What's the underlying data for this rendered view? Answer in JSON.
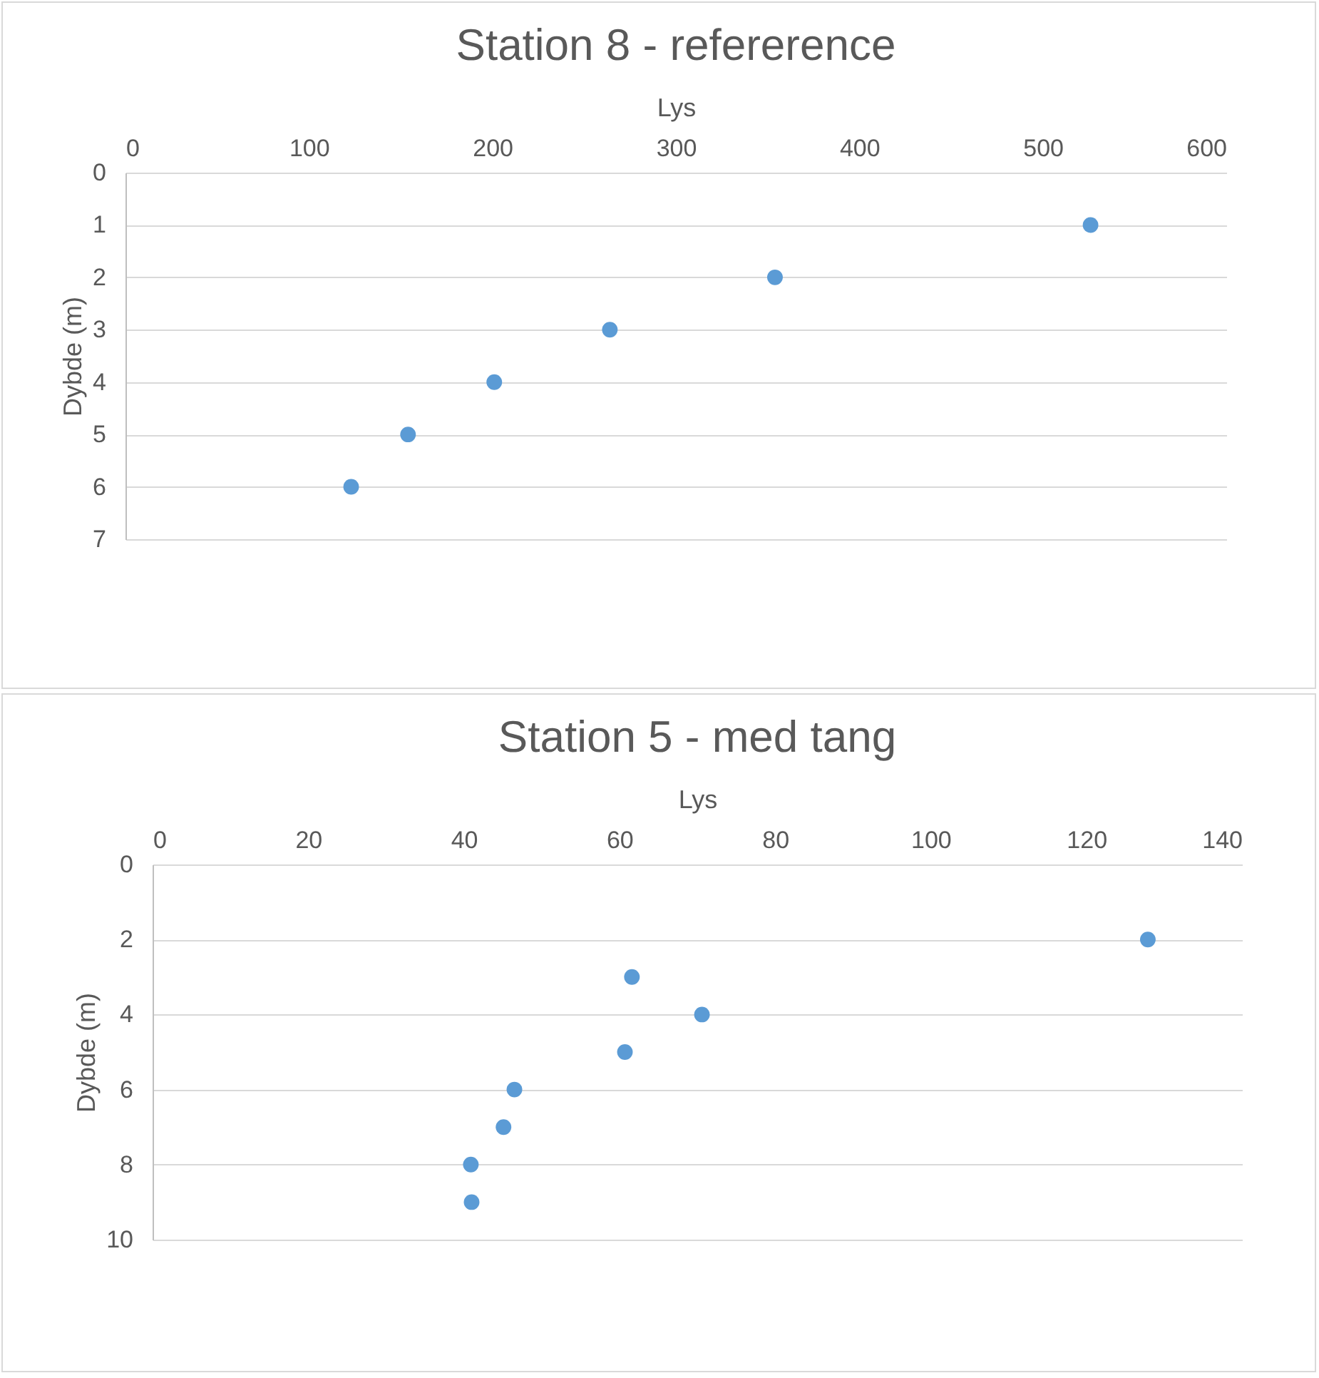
{
  "chart_data": [
    {
      "type": "scatter",
      "title": "Station 8 - refererence",
      "xlabel": "Lys",
      "ylabel": "Dybde (m)",
      "xlim": [
        0,
        600
      ],
      "xticks": [
        0,
        100,
        200,
        300,
        400,
        500,
        600
      ],
      "ylim": [
        7,
        0
      ],
      "yticks": [
        0,
        1,
        2,
        3,
        4,
        5,
        6,
        7
      ],
      "grid": "y",
      "marker": "circle",
      "x": [
        526,
        354,
        264,
        201,
        154,
        123
      ],
      "series": [
        {
          "color": "#5b9bd5",
          "values": [
            1,
            2,
            3,
            4,
            5,
            6
          ]
        }
      ]
    },
    {
      "type": "scatter",
      "title": "Station 5 - med tang",
      "xlabel": "Lys",
      "ylabel": "Dybde (m)",
      "xlim": [
        0,
        140
      ],
      "xticks": [
        0,
        20,
        40,
        60,
        80,
        100,
        120,
        140
      ],
      "ylim": [
        10,
        0
      ],
      "yticks": [
        0,
        2,
        4,
        6,
        8,
        10
      ],
      "grid": "y",
      "marker": "circle",
      "x": [
        127.9,
        61.6,
        70.6,
        60.7,
        46.5,
        45.1,
        40.9,
        41.0
      ],
      "series": [
        {
          "color": "#5b9bd5",
          "values": [
            2,
            3,
            4,
            5,
            6,
            7,
            8,
            9
          ]
        }
      ]
    }
  ]
}
